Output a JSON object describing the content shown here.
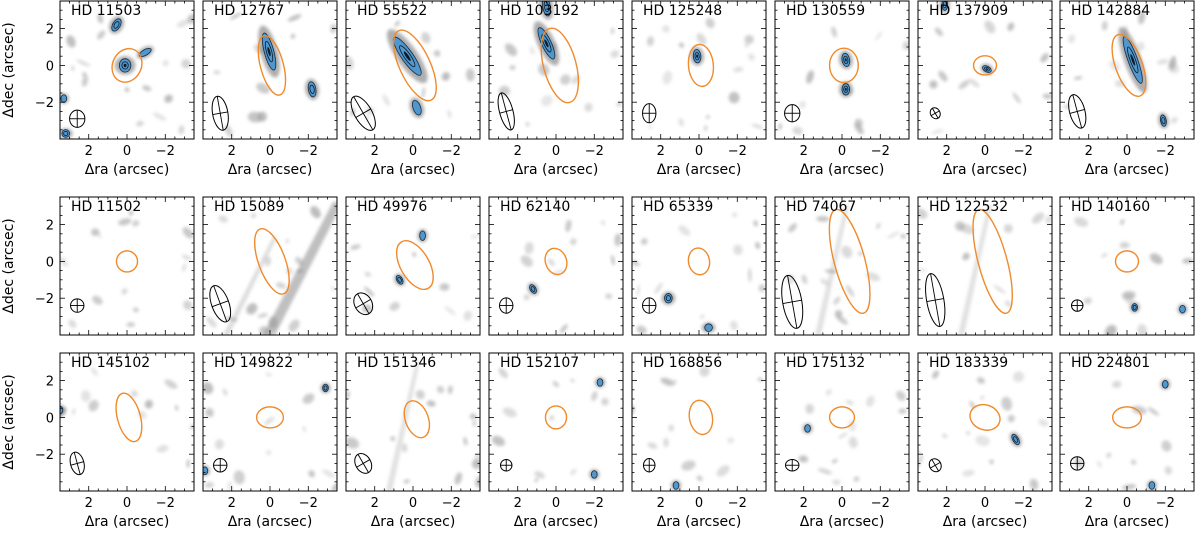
{
  "axis_labels": {
    "xlabel": "Δra (arcsec)",
    "ylabel": "Δdec (arcsec)"
  },
  "colors": {
    "fov_ellipse": "#f08a2a",
    "source_fill": "#4f97cf",
    "background": "#a0a0a0"
  },
  "chart_data": [
    {
      "type": "image",
      "title": "HD 11503",
      "xlim": [
        3.5,
        -3.5
      ],
      "ylim": [
        -4,
        3.5
      ],
      "xticks": [
        "2",
        "0",
        "−2"
      ],
      "yticks": [
        "2",
        "0",
        "−2"
      ],
      "fov": {
        "x": 0.0,
        "y": 0.0,
        "a": 0.9,
        "b": 0.75,
        "pa": -25
      },
      "beam": {
        "x": 2.6,
        "y": -2.9,
        "a": 0.45,
        "b": 0.4,
        "pa": 0
      },
      "sources": [
        {
          "x": 0.1,
          "y": 0.0,
          "a": 0.35,
          "b": 0.3,
          "pa": 0,
          "level": 3
        },
        {
          "x": 0.55,
          "y": 2.2,
          "a": 0.35,
          "b": 0.2,
          "pa": -30,
          "level": 2
        },
        {
          "x": -0.95,
          "y": 0.7,
          "a": 0.35,
          "b": 0.15,
          "pa": -60,
          "level": 1
        },
        {
          "x": 3.2,
          "y": -3.7,
          "a": 0.2,
          "b": 0.2,
          "pa": 0,
          "level": 2
        },
        {
          "x": 3.3,
          "y": -1.8,
          "a": 0.2,
          "b": 0.15,
          "pa": 0,
          "level": 1
        }
      ]
    },
    {
      "type": "image",
      "title": "HD 12767",
      "xlim": [
        3.5,
        -3.5
      ],
      "ylim": [
        -4,
        3.5
      ],
      "xticks": [
        "2",
        "0",
        "−2"
      ],
      "yticks": [
        "2",
        "0",
        "−2"
      ],
      "fov": {
        "x": -0.1,
        "y": 0.0,
        "a": 1.6,
        "b": 0.6,
        "pa": 15
      },
      "beam": {
        "x": 2.6,
        "y": -2.6,
        "a": 0.9,
        "b": 0.4,
        "pa": 10
      },
      "sources": [
        {
          "x": 0.05,
          "y": 0.75,
          "a": 1.0,
          "b": 0.25,
          "pa": 15,
          "level": 3
        },
        {
          "x": -2.2,
          "y": -1.3,
          "a": 0.4,
          "b": 0.2,
          "pa": 10,
          "level": 2
        }
      ]
    },
    {
      "type": "image",
      "title": "HD 55522",
      "xlim": [
        3.5,
        -3.5
      ],
      "ylim": [
        -4,
        3.5
      ],
      "xticks": [
        "2",
        "0",
        "−2"
      ],
      "yticks": [
        "2",
        "0",
        "−2"
      ],
      "fov": {
        "x": -0.1,
        "y": 0.0,
        "a": 2.0,
        "b": 0.8,
        "pa": 25
      },
      "beam": {
        "x": 2.6,
        "y": -2.6,
        "a": 1.0,
        "b": 0.45,
        "pa": 30
      },
      "sources": [
        {
          "x": 0.3,
          "y": 0.5,
          "a": 1.2,
          "b": 0.3,
          "pa": 35,
          "level": 3
        },
        {
          "x": -0.2,
          "y": -2.3,
          "a": 0.4,
          "b": 0.2,
          "pa": 20,
          "level": 1
        }
      ]
    },
    {
      "type": "image",
      "title": "HD 103192",
      "xlim": [
        3.5,
        -3.5
      ],
      "ylim": [
        -4,
        3.5
      ],
      "xticks": [
        "2",
        "0",
        "−2"
      ],
      "yticks": [
        "2",
        "0",
        "−2"
      ],
      "fov": {
        "x": -0.2,
        "y": 0.0,
        "a": 2.0,
        "b": 0.85,
        "pa": 15
      },
      "beam": {
        "x": 2.6,
        "y": -2.5,
        "a": 1.0,
        "b": 0.35,
        "pa": 15
      },
      "sources": [
        {
          "x": 0.5,
          "y": 1.2,
          "a": 0.9,
          "b": 0.25,
          "pa": 25,
          "level": 3
        },
        {
          "x": 0.5,
          "y": 3.2,
          "a": 0.5,
          "b": 0.2,
          "pa": 10,
          "level": 2
        }
      ]
    },
    {
      "type": "image",
      "title": "HD 125248",
      "xlim": [
        3.5,
        -3.5
      ],
      "ylim": [
        -4,
        3.5
      ],
      "xticks": [
        "2",
        "0",
        "−2"
      ],
      "yticks": [
        "2",
        "0",
        "−2"
      ],
      "fov": {
        "x": -0.1,
        "y": 0.0,
        "a": 1.1,
        "b": 0.65,
        "pa": 5
      },
      "beam": {
        "x": 2.6,
        "y": -2.6,
        "a": 0.5,
        "b": 0.35,
        "pa": 0
      },
      "sources": [
        {
          "x": 0.1,
          "y": 0.5,
          "a": 0.35,
          "b": 0.2,
          "pa": 5,
          "level": 3
        }
      ]
    },
    {
      "type": "image",
      "title": "HD 130559",
      "xlim": [
        3.5,
        -3.5
      ],
      "ylim": [
        -4,
        3.5
      ],
      "xticks": [
        "2",
        "0",
        "−2"
      ],
      "yticks": [
        "2",
        "0",
        "−2"
      ],
      "fov": {
        "x": -0.1,
        "y": 0.0,
        "a": 0.9,
        "b": 0.75,
        "pa": 0
      },
      "beam": {
        "x": 2.6,
        "y": -2.6,
        "a": 0.45,
        "b": 0.4,
        "pa": 0
      },
      "sources": [
        {
          "x": -0.2,
          "y": 0.3,
          "a": 0.35,
          "b": 0.2,
          "pa": 10,
          "level": 3
        },
        {
          "x": -0.2,
          "y": -1.3,
          "a": 0.3,
          "b": 0.2,
          "pa": 0,
          "level": 3
        }
      ]
    },
    {
      "type": "image",
      "title": "HD 137909",
      "xlim": [
        3.5,
        -3.5
      ],
      "ylim": [
        -4,
        3.5
      ],
      "xticks": [
        "2",
        "0",
        "−2"
      ],
      "yticks": [
        "2",
        "0",
        "−2"
      ],
      "fov": {
        "x": 0.0,
        "y": 0.0,
        "a": 0.5,
        "b": 0.6,
        "pa": 0
      },
      "beam": {
        "x": 2.6,
        "y": -2.6,
        "a": 0.3,
        "b": 0.25,
        "pa": 30
      },
      "sources": [
        {
          "x": -0.1,
          "y": -0.2,
          "a": 0.25,
          "b": 0.15,
          "pa": 60,
          "level": 3
        },
        {
          "x": 2.1,
          "y": 3.3,
          "a": 0.3,
          "b": 0.15,
          "pa": 0,
          "level": 2
        }
      ]
    },
    {
      "type": "image",
      "title": "HD 142884",
      "xlim": [
        3.5,
        -3.5
      ],
      "ylim": [
        -4,
        3.5
      ],
      "xticks": [
        "2",
        "0",
        "−2"
      ],
      "yticks": [
        "2",
        "0",
        "−2"
      ],
      "fov": {
        "x": -0.1,
        "y": 0.0,
        "a": 1.7,
        "b": 0.7,
        "pa": 20
      },
      "beam": {
        "x": 2.6,
        "y": -2.5,
        "a": 0.9,
        "b": 0.4,
        "pa": 15
      },
      "sources": [
        {
          "x": -0.3,
          "y": 0.3,
          "a": 1.3,
          "b": 0.25,
          "pa": 20,
          "level": 3
        },
        {
          "x": -1.9,
          "y": -3.0,
          "a": 0.3,
          "b": 0.15,
          "pa": 10,
          "level": 2
        }
      ]
    },
    {
      "type": "image",
      "title": "HD 11502",
      "xlim": [
        3.5,
        -3.5
      ],
      "ylim": [
        -4,
        3.5
      ],
      "xticks": [],
      "yticks": [
        "2",
        "0",
        "−2"
      ],
      "fov": {
        "x": 0.0,
        "y": 0.0,
        "a": 0.55,
        "b": 0.55,
        "pa": 0
      },
      "beam": {
        "x": 2.6,
        "y": -2.4,
        "a": 0.35,
        "b": 0.35,
        "pa": 0
      },
      "sources": []
    },
    {
      "type": "image",
      "title": "HD 15089",
      "xlim": [
        3.5,
        -3.5
      ],
      "ylim": [
        -4,
        3.5
      ],
      "xticks": [],
      "yticks": [
        "2",
        "0",
        "−2"
      ],
      "fov": {
        "x": -0.1,
        "y": 0.0,
        "a": 1.8,
        "b": 0.7,
        "pa": 20
      },
      "beam": {
        "x": 2.6,
        "y": -2.3,
        "a": 1.0,
        "b": 0.45,
        "pa": 20
      },
      "sources": []
    },
    {
      "type": "image",
      "title": "HD 49976",
      "xlim": [
        3.5,
        -3.5
      ],
      "ylim": [
        -4,
        3.5
      ],
      "xticks": [],
      "yticks": [
        "2",
        "0",
        "−2"
      ],
      "fov": {
        "x": -0.1,
        "y": -0.2,
        "a": 1.4,
        "b": 0.75,
        "pa": 30
      },
      "beam": {
        "x": 2.6,
        "y": -2.3,
        "a": 0.6,
        "b": 0.45,
        "pa": 30
      },
      "sources": [
        {
          "x": 0.7,
          "y": -1.0,
          "a": 0.25,
          "b": 0.15,
          "pa": 30,
          "level": 2
        },
        {
          "x": -0.5,
          "y": 1.4,
          "a": 0.25,
          "b": 0.15,
          "pa": 0,
          "level": 1
        }
      ]
    },
    {
      "type": "image",
      "title": "HD 62140",
      "xlim": [
        3.5,
        -3.5
      ],
      "ylim": [
        -4,
        3.5
      ],
      "xticks": [],
      "yticks": [
        "2",
        "0",
        "−2"
      ],
      "fov": {
        "x": 0.0,
        "y": 0.0,
        "a": 0.7,
        "b": 0.55,
        "pa": 20
      },
      "beam": {
        "x": 2.6,
        "y": -2.4,
        "a": 0.4,
        "b": 0.35,
        "pa": 0
      },
      "sources": [
        {
          "x": 1.2,
          "y": -1.5,
          "a": 0.25,
          "b": 0.15,
          "pa": 30,
          "level": 2
        }
      ]
    },
    {
      "type": "image",
      "title": "HD 65339",
      "xlim": [
        3.5,
        -3.5
      ],
      "ylim": [
        -4,
        3.5
      ],
      "xticks": [],
      "yticks": [
        "2",
        "0",
        "−2"
      ],
      "fov": {
        "x": 0.0,
        "y": 0.0,
        "a": 0.7,
        "b": 0.55,
        "pa": 10
      },
      "beam": {
        "x": 2.6,
        "y": -2.4,
        "a": 0.4,
        "b": 0.35,
        "pa": 0
      },
      "sources": [
        {
          "x": 1.6,
          "y": -2.0,
          "a": 0.25,
          "b": 0.2,
          "pa": 0,
          "level": 2
        },
        {
          "x": -0.5,
          "y": -3.6,
          "a": 0.2,
          "b": 0.2,
          "pa": 0,
          "level": 1
        }
      ]
    },
    {
      "type": "image",
      "title": "HD 74067",
      "xlim": [
        3.5,
        -3.5
      ],
      "ylim": [
        -4,
        3.5
      ],
      "xticks": [],
      "yticks": [
        "2",
        "0",
        "−2"
      ],
      "fov": {
        "x": -0.4,
        "y": 0.0,
        "a": 2.8,
        "b": 0.8,
        "pa": 15
      },
      "beam": {
        "x": 2.6,
        "y": -2.2,
        "a": 1.4,
        "b": 0.5,
        "pa": 10
      },
      "sources": []
    },
    {
      "type": "image",
      "title": "HD 122532",
      "xlim": [
        3.5,
        -3.5
      ],
      "ylim": [
        -4,
        3.5
      ],
      "xticks": [],
      "yticks": [
        "2",
        "0",
        "−2"
      ],
      "fov": {
        "x": -0.4,
        "y": 0.0,
        "a": 2.8,
        "b": 0.75,
        "pa": 15
      },
      "beam": {
        "x": 2.6,
        "y": -2.1,
        "a": 1.4,
        "b": 0.45,
        "pa": 10
      },
      "sources": []
    },
    {
      "type": "image",
      "title": "HD 140160",
      "xlim": [
        3.5,
        -3.5
      ],
      "ylim": [
        -4,
        3.5
      ],
      "xticks": [],
      "yticks": [
        "2",
        "0",
        "−2"
      ],
      "fov": {
        "x": 0.0,
        "y": 0.0,
        "a": 0.55,
        "b": 0.6,
        "pa": 0
      },
      "beam": {
        "x": 2.6,
        "y": -2.4,
        "a": 0.3,
        "b": 0.3,
        "pa": 0
      },
      "sources": [
        {
          "x": -0.4,
          "y": -2.5,
          "a": 0.2,
          "b": 0.15,
          "pa": 0,
          "level": 2
        },
        {
          "x": -2.9,
          "y": -2.6,
          "a": 0.2,
          "b": 0.15,
          "pa": 0,
          "level": 1
        }
      ]
    },
    {
      "type": "image",
      "title": "HD 145102",
      "xlim": [
        3.5,
        -3.5
      ],
      "ylim": [
        -4,
        3.5
      ],
      "xticks": [
        "2",
        "0",
        "−2"
      ],
      "yticks": [
        "2",
        "0",
        "−2"
      ],
      "fov": {
        "x": -0.1,
        "y": 0.0,
        "a": 1.3,
        "b": 0.6,
        "pa": 15
      },
      "beam": {
        "x": 2.6,
        "y": -2.5,
        "a": 0.6,
        "b": 0.35,
        "pa": 15
      },
      "sources": [
        {
          "x": 3.5,
          "y": 0.4,
          "a": 0.2,
          "b": 0.15,
          "pa": 0,
          "level": 1
        }
      ]
    },
    {
      "type": "image",
      "title": "HD 149822",
      "xlim": [
        3.5,
        -3.5
      ],
      "ylim": [
        -4,
        3.5
      ],
      "xticks": [
        "2",
        "0",
        "−2"
      ],
      "yticks": [
        "2",
        "0",
        "−2"
      ],
      "fov": {
        "x": 0.0,
        "y": 0.0,
        "a": 0.55,
        "b": 0.7,
        "pa": 0
      },
      "beam": {
        "x": 2.6,
        "y": -2.6,
        "a": 0.35,
        "b": 0.35,
        "pa": 0
      },
      "sources": [
        {
          "x": -2.9,
          "y": 1.6,
          "a": 0.2,
          "b": 0.15,
          "pa": 0,
          "level": 2
        },
        {
          "x": 3.4,
          "y": -2.9,
          "a": 0.2,
          "b": 0.15,
          "pa": 0,
          "level": 1
        }
      ]
    },
    {
      "type": "image",
      "title": "HD 151346",
      "xlim": [
        3.5,
        -3.5
      ],
      "ylim": [
        -4,
        3.5
      ],
      "xticks": [
        "2",
        "0",
        "−2"
      ],
      "yticks": [
        "2",
        "0",
        "−2"
      ],
      "fov": {
        "x": -0.2,
        "y": -0.1,
        "a": 1.0,
        "b": 0.6,
        "pa": 20
      },
      "beam": {
        "x": 2.6,
        "y": -2.5,
        "a": 0.55,
        "b": 0.4,
        "pa": 30
      },
      "sources": []
    },
    {
      "type": "image",
      "title": "HD 152107",
      "xlim": [
        3.5,
        -3.5
      ],
      "ylim": [
        -4,
        3.5
      ],
      "xticks": [
        "2",
        "0",
        "−2"
      ],
      "yticks": [
        "2",
        "0",
        "−2"
      ],
      "fov": {
        "x": 0.0,
        "y": 0.0,
        "a": 0.6,
        "b": 0.55,
        "pa": 0
      },
      "beam": {
        "x": 2.6,
        "y": -2.6,
        "a": 0.3,
        "b": 0.3,
        "pa": 0
      },
      "sources": [
        {
          "x": -2.3,
          "y": 1.9,
          "a": 0.2,
          "b": 0.15,
          "pa": 0,
          "level": 1
        },
        {
          "x": -2.0,
          "y": -3.1,
          "a": 0.2,
          "b": 0.15,
          "pa": 0,
          "level": 1
        }
      ]
    },
    {
      "type": "image",
      "title": "HD 168856",
      "xlim": [
        3.5,
        -3.5
      ],
      "ylim": [
        -4,
        3.5
      ],
      "xticks": [
        "2",
        "0",
        "−2"
      ],
      "yticks": [
        "2",
        "0",
        "−2"
      ],
      "fov": {
        "x": -0.1,
        "y": 0.0,
        "a": 0.9,
        "b": 0.6,
        "pa": 10
      },
      "beam": {
        "x": 2.6,
        "y": -2.6,
        "a": 0.35,
        "b": 0.3,
        "pa": 0
      },
      "sources": [
        {
          "x": 1.2,
          "y": -3.7,
          "a": 0.2,
          "b": 0.15,
          "pa": 0,
          "level": 1
        }
      ]
    },
    {
      "type": "image",
      "title": "HD 175132",
      "xlim": [
        3.5,
        -3.5
      ],
      "ylim": [
        -4,
        3.5
      ],
      "xticks": [
        "2",
        "0",
        "−2"
      ],
      "yticks": [
        "2",
        "0",
        "−2"
      ],
      "fov": {
        "x": 0.0,
        "y": 0.0,
        "a": 0.55,
        "b": 0.65,
        "pa": 0
      },
      "beam": {
        "x": 2.6,
        "y": -2.6,
        "a": 0.3,
        "b": 0.35,
        "pa": 0
      },
      "sources": [
        {
          "x": 1.8,
          "y": -0.6,
          "a": 0.2,
          "b": 0.15,
          "pa": 0,
          "level": 1
        }
      ]
    },
    {
      "type": "image",
      "title": "HD 183339",
      "xlim": [
        3.5,
        -3.5
      ],
      "ylim": [
        -4,
        3.5
      ],
      "xticks": [
        "2",
        "0",
        "−2"
      ],
      "yticks": [
        "2",
        "0",
        "−2"
      ],
      "fov": {
        "x": 0.0,
        "y": 0.0,
        "a": 0.65,
        "b": 0.8,
        "pa": -20
      },
      "beam": {
        "x": 2.6,
        "y": -2.6,
        "a": 0.35,
        "b": 0.3,
        "pa": 30
      },
      "sources": [
        {
          "x": -1.6,
          "y": -1.2,
          "a": 0.3,
          "b": 0.15,
          "pa": 30,
          "level": 2
        }
      ]
    },
    {
      "type": "image",
      "title": "HD 224801",
      "xlim": [
        3.5,
        -3.5
      ],
      "ylim": [
        -4,
        3.5
      ],
      "xticks": [
        "2",
        "0",
        "−2"
      ],
      "yticks": [
        "2",
        "0",
        "−2"
      ],
      "fov": {
        "x": 0.0,
        "y": 0.0,
        "a": 0.55,
        "b": 0.75,
        "pa": 0
      },
      "beam": {
        "x": 2.6,
        "y": -2.5,
        "a": 0.35,
        "b": 0.35,
        "pa": 0
      },
      "sources": [
        {
          "x": -2.0,
          "y": 1.8,
          "a": 0.2,
          "b": 0.15,
          "pa": 0,
          "level": 1
        },
        {
          "x": -1.3,
          "y": -3.7,
          "a": 0.2,
          "b": 0.15,
          "pa": 0,
          "level": 1
        }
      ]
    }
  ]
}
